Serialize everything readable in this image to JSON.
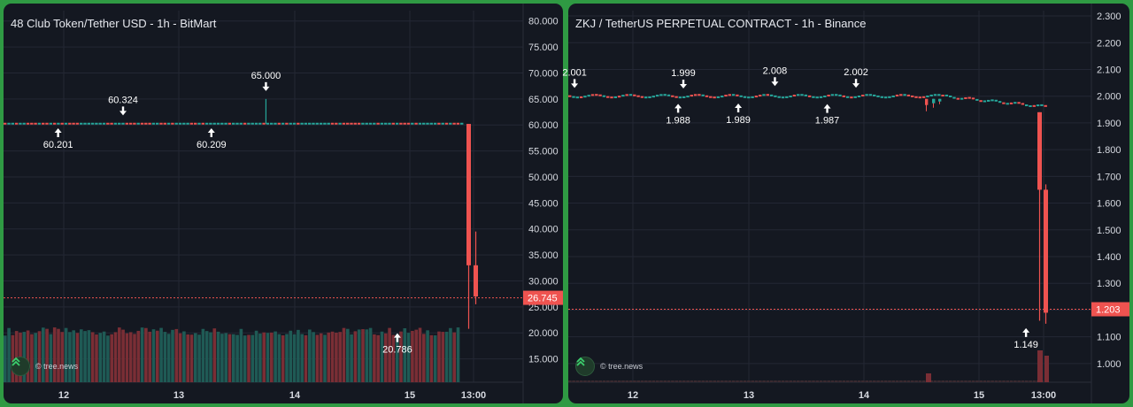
{
  "chart_data": [
    {
      "type": "candlestick",
      "title": "48 Club Token/Tether USD - 1h - BitMart",
      "y_ticks": [
        "80.000",
        "75.000",
        "70.000",
        "65.000",
        "60.000",
        "55.000",
        "50.000",
        "45.000",
        "40.000",
        "35.000",
        "30.000",
        "25.000",
        "20.000",
        "15.000"
      ],
      "ylim": [
        10.5,
        82
      ],
      "x_ticks": [
        "12",
        "13",
        "14",
        "15",
        "13:00"
      ],
      "grid": true,
      "current_price": "26.745",
      "current_price_value": 26.745,
      "baseline_price": 60.25,
      "annotations": [
        {
          "label": "60.201",
          "value": 60.201,
          "dir": "up",
          "pos": 0.105
        },
        {
          "label": "60.324",
          "value": 60.324,
          "dir": "down",
          "pos": 0.23
        },
        {
          "label": "60.209",
          "value": 60.209,
          "dir": "up",
          "pos": 0.4
        },
        {
          "label": "65.000",
          "value": 65.0,
          "dir": "down",
          "pos": 0.505
        },
        {
          "label": "20.786",
          "value": 20.786,
          "dir": "up",
          "pos": 0.758
        }
      ],
      "spike": {
        "pos": 0.505,
        "high": 65.0
      },
      "crash": [
        {
          "open": 60.2,
          "close": 33.0,
          "high": 60.2,
          "low": 20.786,
          "pos": 0.757
        },
        {
          "open": 33.0,
          "close": 27.0,
          "high": 39.5,
          "low": 25.5,
          "pos": 0.764
        }
      ],
      "watermark": "© tree.news"
    },
    {
      "type": "candlestick",
      "title": "ZKJ / TetherUS PERPETUAL CONTRACT - 1h - Binance",
      "y_ticks": [
        "2.300",
        "2.200",
        "2.100",
        "2.000",
        "1.900",
        "1.800",
        "1.700",
        "1.600",
        "1.500",
        "1.400",
        "1.300",
        "1.200",
        "1.100",
        "1.000"
      ],
      "ylim": [
        0.93,
        2.32
      ],
      "x_ticks": [
        "12",
        "13",
        "14",
        "15",
        "13:00"
      ],
      "grid": true,
      "current_price": "1.203",
      "current_price_value": 1.203,
      "baseline_price": 2.0,
      "annotations": [
        {
          "label": "2.001",
          "value": 2.001,
          "dir": "down",
          "pos": 0.012
        },
        {
          "label": "1.999",
          "value": 1.999,
          "dir": "down",
          "pos": 0.22
        },
        {
          "label": "1.988",
          "value": 1.988,
          "dir": "up",
          "pos": 0.21
        },
        {
          "label": "1.989",
          "value": 1.989,
          "dir": "up",
          "pos": 0.325
        },
        {
          "label": "2.008",
          "value": 2.008,
          "dir": "down",
          "pos": 0.395
        },
        {
          "label": "1.987",
          "value": 1.987,
          "dir": "up",
          "pos": 0.495
        },
        {
          "label": "2.002",
          "value": 2.002,
          "dir": "down",
          "pos": 0.55
        },
        {
          "label": "1.149",
          "value": 1.149,
          "dir": "up",
          "pos": 0.875
        }
      ],
      "crash": [
        {
          "open": 1.94,
          "close": 1.65,
          "high": 1.94,
          "low": 1.16,
          "pos": 0.867
        },
        {
          "open": 1.65,
          "close": 1.19,
          "high": 1.67,
          "low": 1.149,
          "pos": 0.875
        }
      ],
      "watermark": "© tree.news"
    }
  ]
}
